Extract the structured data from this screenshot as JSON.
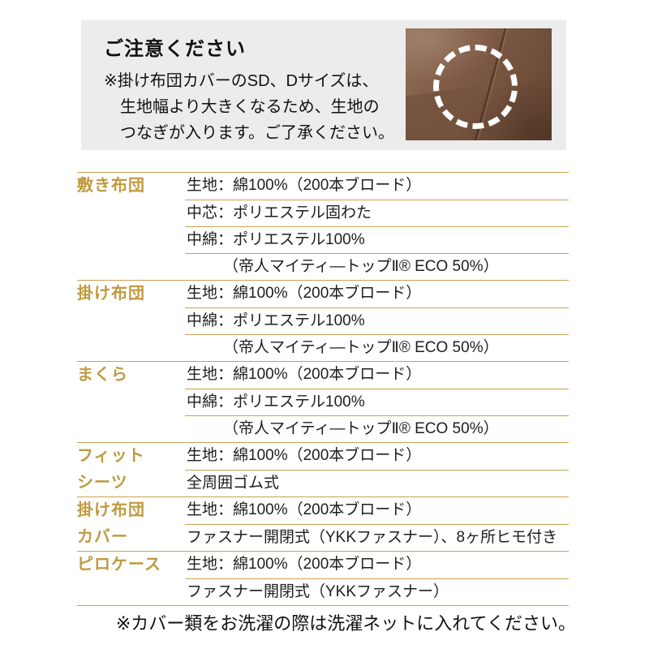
{
  "notice": {
    "title": "ご注意ください",
    "lines": [
      "※掛け布団カバーのSD、Dサイズは、",
      "生地幅より大きくなるため、生地の",
      "つなぎが入ります。ご了承ください。"
    ],
    "photo": {
      "icon": "dashed-circle-highlight",
      "subject": "fabric-seam-closeup"
    }
  },
  "table": {
    "sections": [
      {
        "label_lines": [
          "敷き布団"
        ],
        "rows": [
          {
            "text": "生地：綿100%（200本ブロード）",
            "indent": false
          },
          {
            "text": "中芯：ポリエステル固わた",
            "indent": false
          },
          {
            "text": "中綿：ポリエステル100%",
            "indent": false
          },
          {
            "text": "（帝人マイティ―トップⅡ® ECO 50%）",
            "indent": true
          }
        ]
      },
      {
        "label_lines": [
          "掛け布団"
        ],
        "rows": [
          {
            "text": "生地：綿100%（200本ブロード）",
            "indent": false
          },
          {
            "text": "中綿：ポリエステル100%",
            "indent": false
          },
          {
            "text": "（帝人マイティ―トップⅡ® ECO 50%）",
            "indent": true
          }
        ]
      },
      {
        "label_lines": [
          "まくら"
        ],
        "rows": [
          {
            "text": "生地：綿100%（200本ブロード）",
            "indent": false
          },
          {
            "text": "中綿：ポリエステル100%",
            "indent": false
          },
          {
            "text": "（帝人マイティ―トップⅡ® ECO 50%）",
            "indent": true
          }
        ]
      },
      {
        "label_lines": [
          "フィット",
          "シーツ"
        ],
        "rows": [
          {
            "text": "生地：綿100%（200本ブロード）",
            "indent": false
          },
          {
            "text": "全周囲ゴム式",
            "indent": false
          }
        ]
      },
      {
        "label_lines": [
          "掛け布団",
          "カバー"
        ],
        "rows": [
          {
            "text": "生地：綿100%（200本ブロード）",
            "indent": false
          },
          {
            "text": "ファスナー開閉式（YKKファスナー）、8ヶ所ヒモ付き",
            "indent": false
          }
        ]
      },
      {
        "label_lines": [
          "ピロケース"
        ],
        "rows": [
          {
            "text": "生地：綿100%（200本ブロード）",
            "indent": false
          },
          {
            "text": "ファスナー開閉式（YKKファスナー）",
            "indent": false
          }
        ]
      }
    ]
  },
  "footer_note": "※カバー類をお洗濯の際は洗濯ネットに入れてください。",
  "colors": {
    "accent_gold_label": "#bf9a40",
    "rule_gold": "#c8a251",
    "notice_bg": "#ececec",
    "fabric_brown": "#7b5743",
    "highlight_circle": "#ffffff",
    "text": "#1e1e1e"
  }
}
